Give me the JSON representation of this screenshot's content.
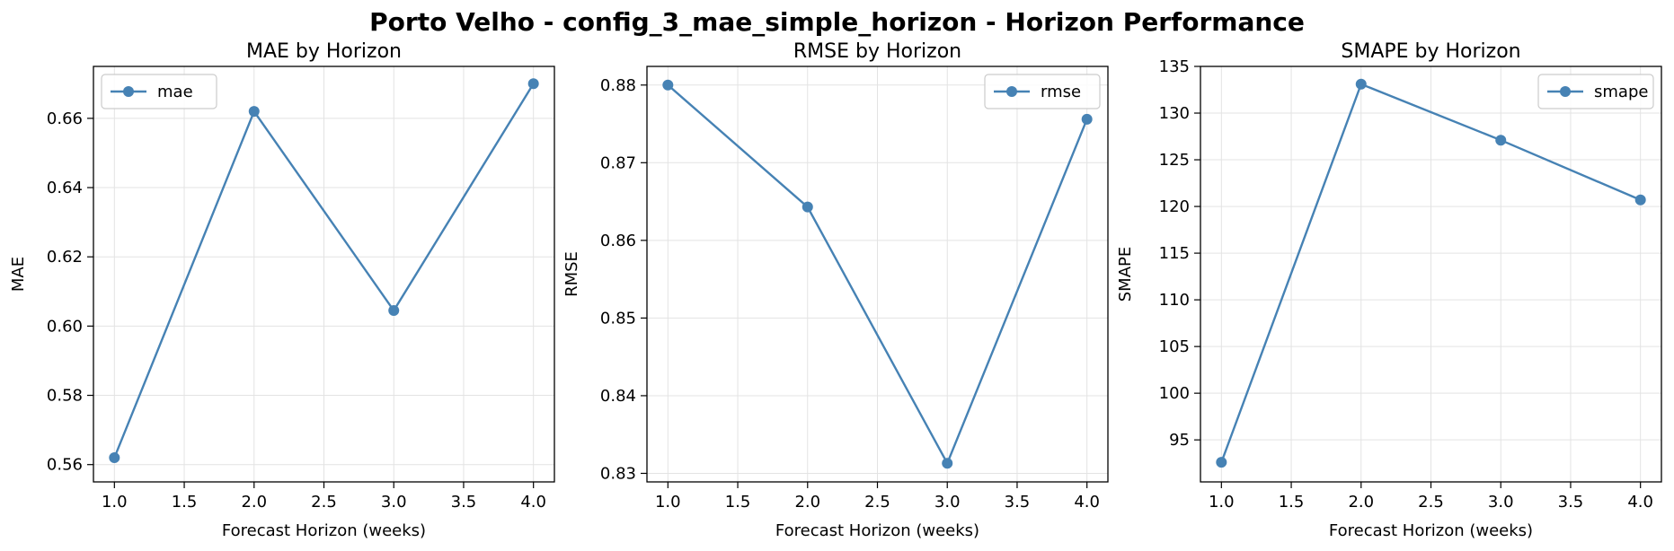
{
  "figure": {
    "title": "Porto Velho - config_3_mae_simple_horizon - Horizon Performance"
  },
  "colors": {
    "series": "#4682b4",
    "grid": "#e3e3e3",
    "axis": "#000000",
    "legend_border": "#cccccc"
  },
  "chart_data": [
    {
      "type": "line",
      "title": "MAE by Horizon",
      "xlabel": "Forecast Horizon (weeks)",
      "ylabel": "MAE",
      "xlim": [
        0.85,
        4.15
      ],
      "ylim": [
        0.555,
        0.675
      ],
      "xticks": [
        1.0,
        1.5,
        2.0,
        2.5,
        3.0,
        3.5,
        4.0
      ],
      "xtick_labels": [
        "1.0",
        "1.5",
        "2.0",
        "2.5",
        "3.0",
        "3.5",
        "4.0"
      ],
      "yticks": [
        0.56,
        0.58,
        0.6,
        0.62,
        0.64,
        0.66
      ],
      "ytick_labels": [
        "0.56",
        "0.58",
        "0.60",
        "0.62",
        "0.64",
        "0.66"
      ],
      "grid": true,
      "legend_position": "upper left",
      "series": [
        {
          "name": "mae",
          "marker": "circle",
          "x": [
            1,
            2,
            3,
            4
          ],
          "values": [
            0.562,
            0.662,
            0.6045,
            0.67
          ]
        }
      ]
    },
    {
      "type": "line",
      "title": "RMSE by Horizon",
      "xlabel": "Forecast Horizon (weeks)",
      "ylabel": "RMSE",
      "xlim": [
        0.85,
        4.15
      ],
      "ylim": [
        0.8289,
        0.8824
      ],
      "xticks": [
        1.0,
        1.5,
        2.0,
        2.5,
        3.0,
        3.5,
        4.0
      ],
      "xtick_labels": [
        "1.0",
        "1.5",
        "2.0",
        "2.5",
        "3.0",
        "3.5",
        "4.0"
      ],
      "yticks": [
        0.83,
        0.84,
        0.85,
        0.86,
        0.87,
        0.88
      ],
      "ytick_labels": [
        "0.83",
        "0.84",
        "0.85",
        "0.86",
        "0.87",
        "0.88"
      ],
      "grid": true,
      "legend_position": "upper right",
      "series": [
        {
          "name": "rmse",
          "marker": "circle",
          "x": [
            1,
            2,
            3,
            4
          ],
          "values": [
            0.88,
            0.8643,
            0.8313,
            0.8756
          ]
        }
      ]
    },
    {
      "type": "line",
      "title": "SMAPE by Horizon",
      "xlabel": "Forecast Horizon (weeks)",
      "ylabel": "SMAPE",
      "xlim": [
        0.85,
        4.15
      ],
      "ylim": [
        90.5,
        135.0
      ],
      "xticks": [
        1.0,
        1.5,
        2.0,
        2.5,
        3.0,
        3.5,
        4.0
      ],
      "xtick_labels": [
        "1.0",
        "1.5",
        "2.0",
        "2.5",
        "3.0",
        "3.5",
        "4.0"
      ],
      "yticks": [
        95,
        100,
        105,
        110,
        115,
        120,
        125,
        130,
        135
      ],
      "ytick_labels": [
        "95",
        "100",
        "105",
        "110",
        "115",
        "120",
        "125",
        "130",
        "135"
      ],
      "grid": true,
      "legend_position": "upper right",
      "series": [
        {
          "name": "smape",
          "marker": "circle",
          "x": [
            1,
            2,
            3,
            4
          ],
          "values": [
            92.6,
            133.1,
            127.1,
            120.7
          ]
        }
      ]
    }
  ]
}
